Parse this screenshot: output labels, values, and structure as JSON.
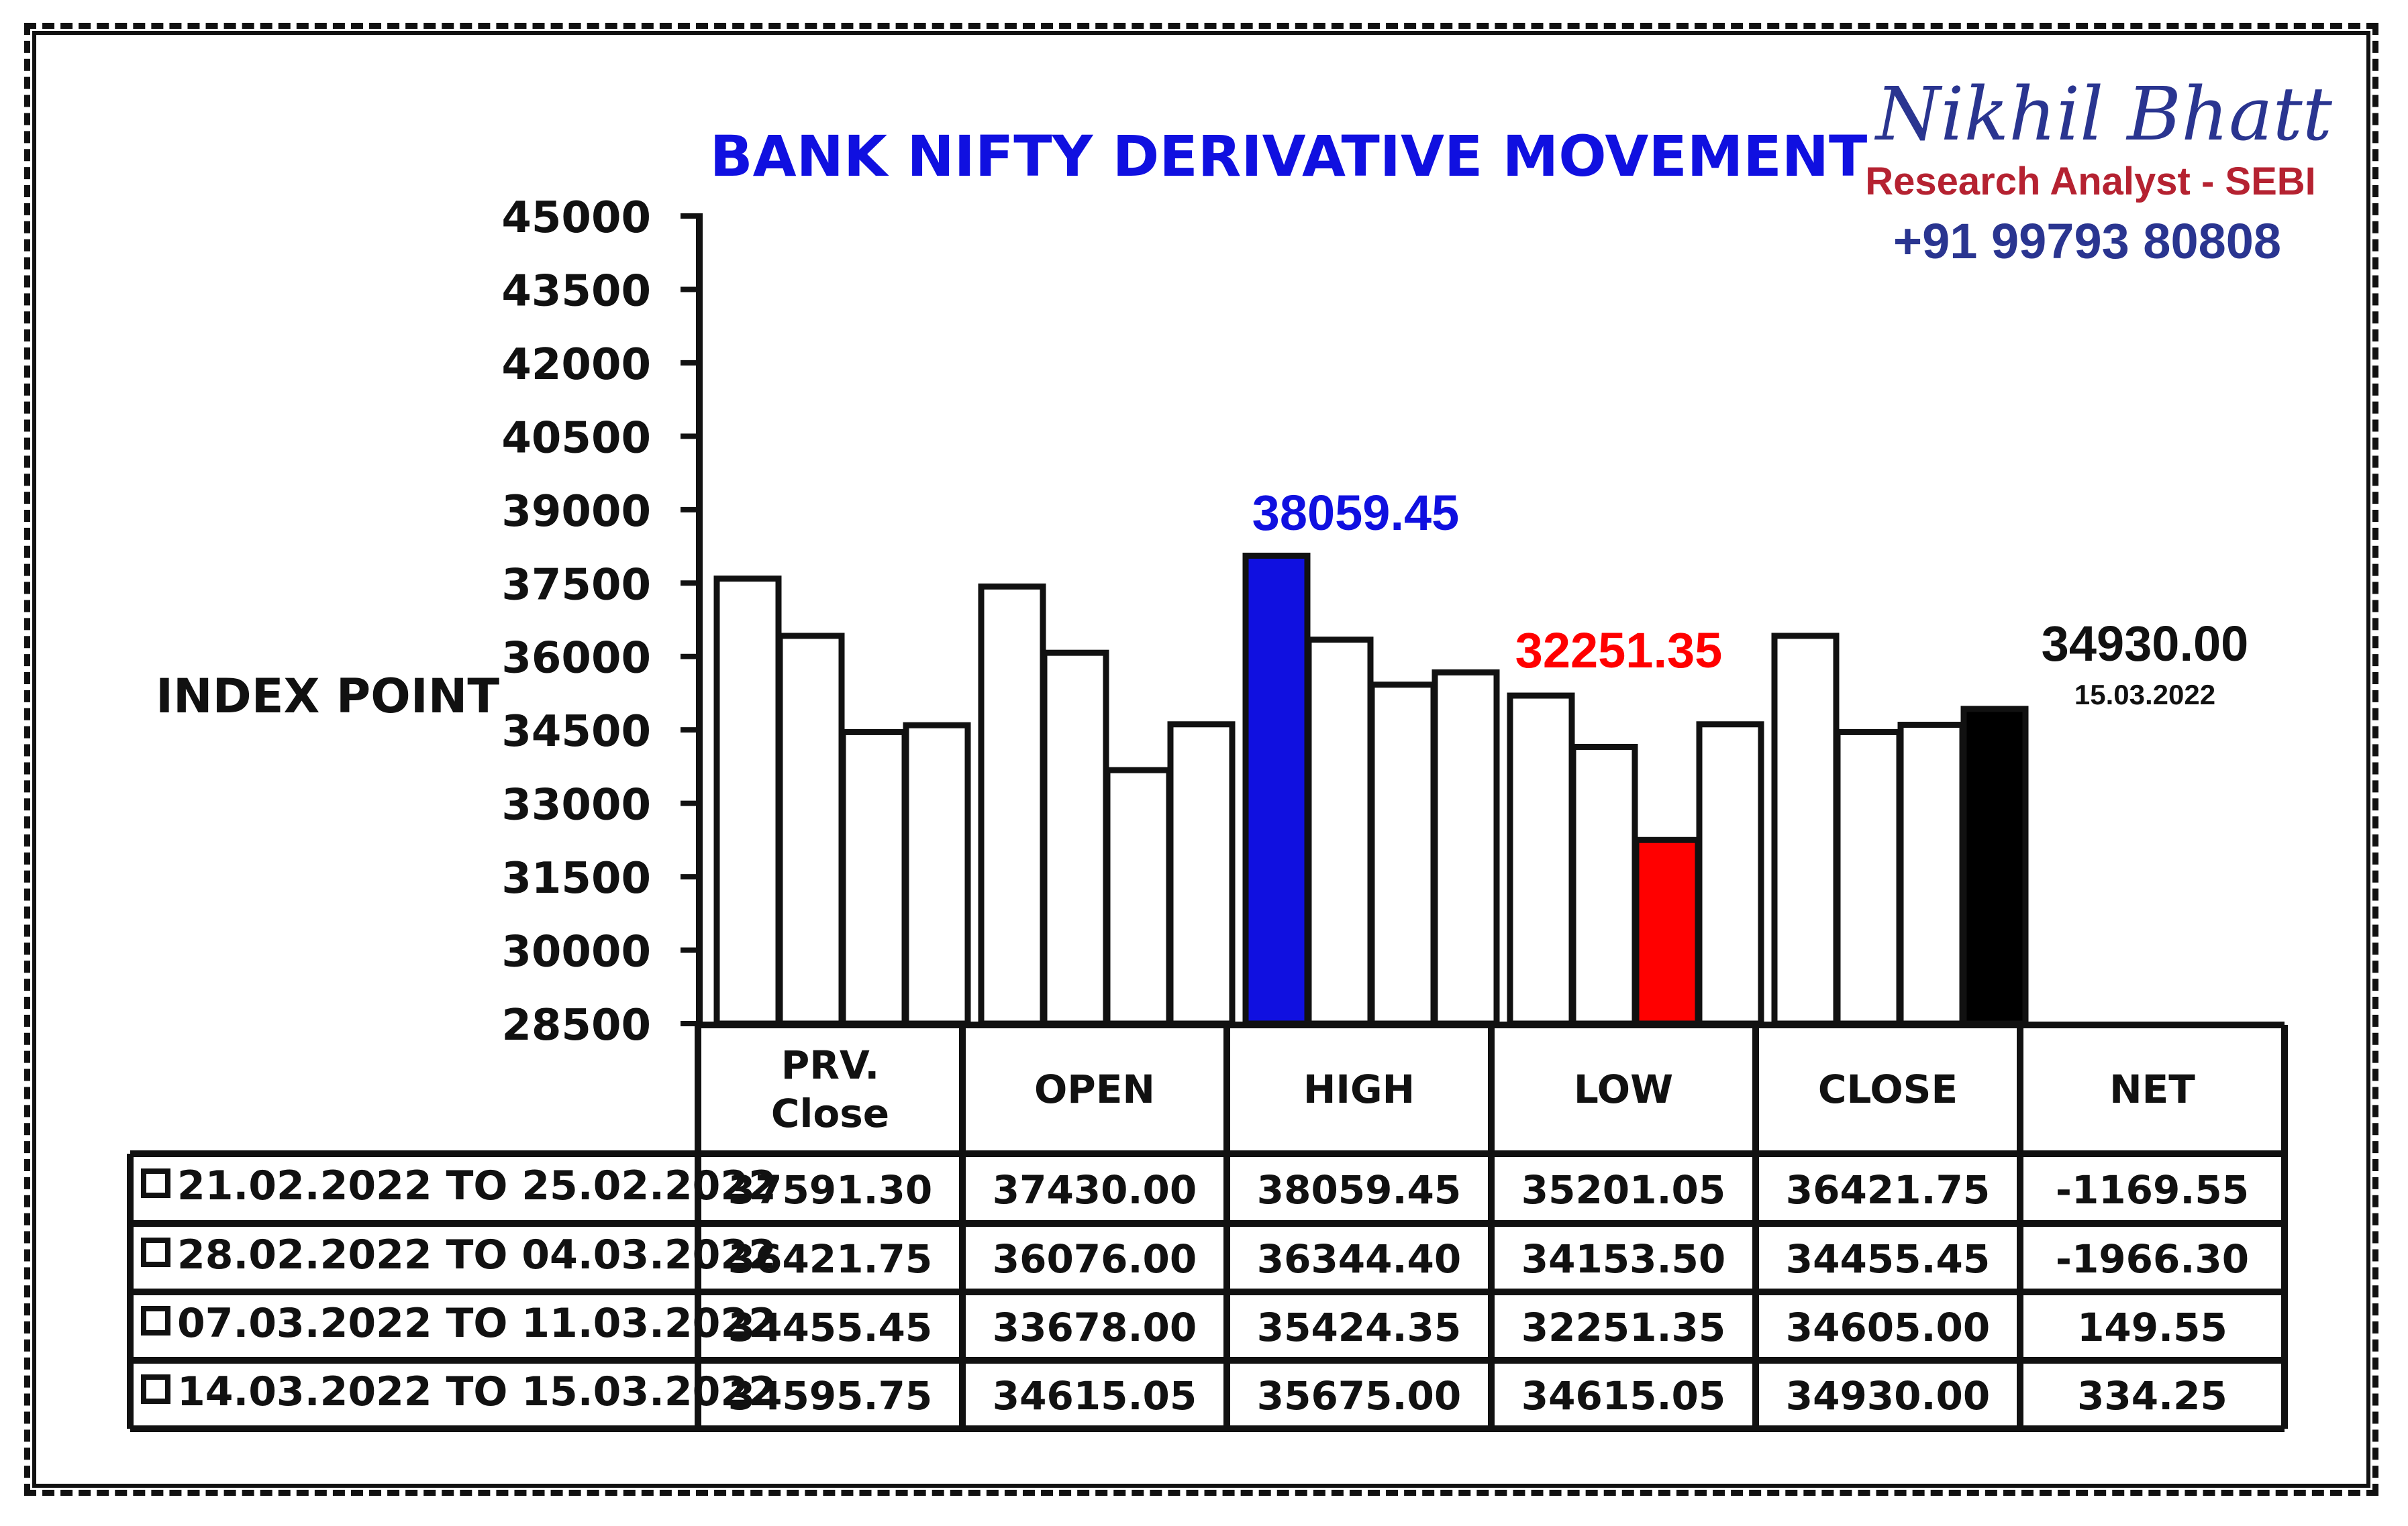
{
  "title": "BANK NIFTY DERIVATIVE MOVEMENT",
  "brand": {
    "name": "Nikhil Bhatt",
    "subtitle": "Research Analyst - SEBI",
    "phone": "+91 99793 80808"
  },
  "y_axis_label": "INDEX POINT",
  "highlights": {
    "high": "38059.45",
    "low": "32251.35",
    "last_value": "34930.00",
    "last_date": "15.03.2022"
  },
  "colors": {
    "highlight_high": "#1010e0",
    "highlight_low": "#ff0000",
    "highlight_last": "#000000",
    "bar_default": "#ffffff"
  },
  "table": {
    "headers": [
      "PRV.\nClose",
      "OPEN",
      "HIGH",
      "LOW",
      "CLOSE",
      "NET"
    ],
    "rows": [
      {
        "label": "21.02.2022 TO 25.02.2022",
        "values": [
          "37591.30",
          "37430.00",
          "38059.45",
          "35201.05",
          "36421.75",
          "-1169.55"
        ]
      },
      {
        "label": "28.02.2022 TO 04.03.2022",
        "values": [
          "36421.75",
          "36076.00",
          "36344.40",
          "34153.50",
          "34455.45",
          "-1966.30"
        ]
      },
      {
        "label": "07.03.2022 TO 11.03.2022",
        "values": [
          "34455.45",
          "33678.00",
          "35424.35",
          "32251.35",
          "34605.00",
          "149.55"
        ]
      },
      {
        "label": "14.03.2022 TO 15.03.2022",
        "values": [
          "34595.75",
          "34615.05",
          "35675.00",
          "34615.05",
          "34930.00",
          "334.25"
        ]
      }
    ]
  },
  "chart_data": {
    "type": "bar",
    "title": "BANK NIFTY DERIVATIVE MOVEMENT",
    "ylabel": "INDEX POINT",
    "xlabel": "",
    "ylim": [
      28500,
      45000
    ],
    "yticks": [
      45000,
      43500,
      42000,
      40500,
      39000,
      37500,
      36000,
      34500,
      33000,
      31500,
      30000,
      28500
    ],
    "categories": [
      "PRV.\nClose",
      "OPEN",
      "HIGH",
      "LOW",
      "CLOSE"
    ],
    "series": [
      {
        "name": "21.02.2022 TO 25.02.2022",
        "values": [
          37591.3,
          37430.0,
          38059.45,
          35201.05,
          36421.75
        ]
      },
      {
        "name": "28.02.2022 TO 04.03.2022",
        "values": [
          36421.75,
          36076.0,
          36344.4,
          34153.5,
          34455.45
        ]
      },
      {
        "name": "07.03.2022 TO 11.03.2022",
        "values": [
          34455.45,
          33678.0,
          35424.35,
          32251.35,
          34605.0
        ]
      },
      {
        "name": "14.03.2022 TO 15.03.2022",
        "values": [
          34595.75,
          34615.05,
          35675.0,
          34615.05,
          34930.0
        ]
      }
    ],
    "highlighted_bars": [
      {
        "category": "HIGH",
        "series": "21.02.2022 TO 25.02.2022",
        "color": "#1010e0"
      },
      {
        "category": "LOW",
        "series": "07.03.2022 TO 11.03.2022",
        "color": "#ff0000"
      },
      {
        "category": "CLOSE",
        "series": "14.03.2022 TO 15.03.2022",
        "color": "#000000"
      }
    ],
    "grid": false,
    "legend": "table-below"
  }
}
